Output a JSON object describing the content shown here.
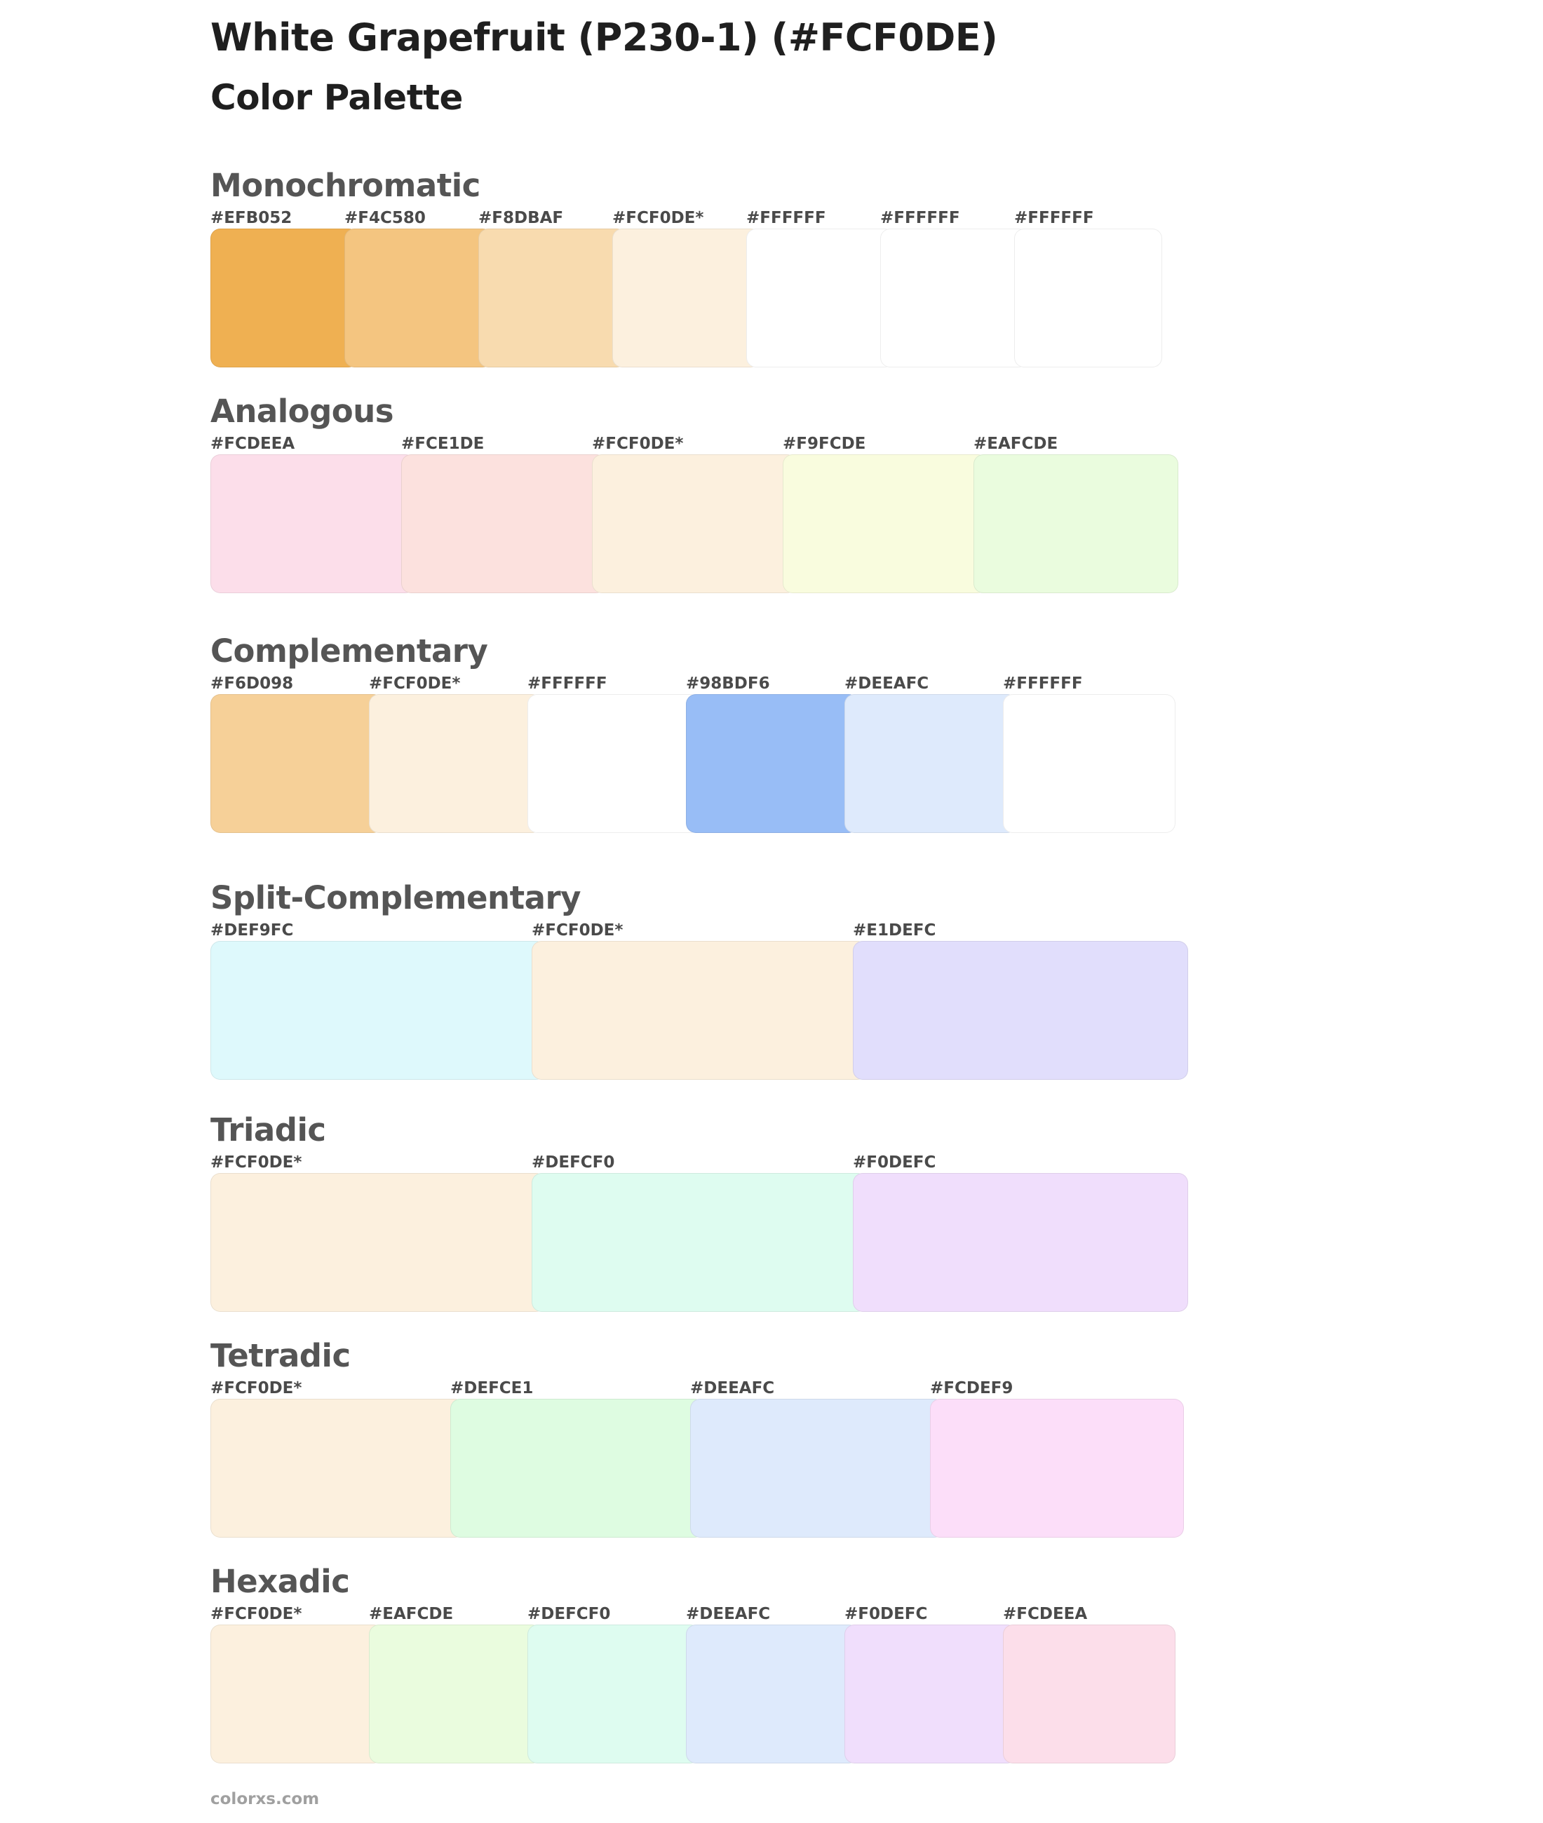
{
  "title": "White Grapefruit (P230-1) (#FCF0DE)",
  "subtitle": "Color Palette",
  "footer": "colorxs.com",
  "sections": [
    {
      "name": "Monochromatic",
      "swatches": [
        {
          "label": "#EFB052",
          "color": "#EFB052"
        },
        {
          "label": "#F4C580",
          "color": "#F4C580"
        },
        {
          "label": "#F8DBAF",
          "color": "#F8DBAF"
        },
        {
          "label": "#FCF0DE*",
          "color": "#FCF0DE"
        },
        {
          "label": "#FFFFFF",
          "color": "#FFFFFF"
        },
        {
          "label": "#FFFFFF",
          "color": "#FFFFFF"
        },
        {
          "label": "#FFFFFF",
          "color": "#FFFFFF"
        }
      ]
    },
    {
      "name": "Analogous",
      "swatches": [
        {
          "label": "#FCDEEA",
          "color": "#FCDEEA"
        },
        {
          "label": "#FCE1DE",
          "color": "#FCE1DE"
        },
        {
          "label": "#FCF0DE*",
          "color": "#FCF0DE"
        },
        {
          "label": "#F9FCDE",
          "color": "#F9FCDE"
        },
        {
          "label": "#EAFCDE",
          "color": "#EAFCDE"
        }
      ]
    },
    {
      "name": "Complementary",
      "swatches": [
        {
          "label": "#F6D098",
          "color": "#F6D098"
        },
        {
          "label": "#FCF0DE*",
          "color": "#FCF0DE"
        },
        {
          "label": "#FFFFFF",
          "color": "#FFFFFF"
        },
        {
          "label": "#98BDF6",
          "color": "#98BDF6"
        },
        {
          "label": "#DEEAFC",
          "color": "#DEEAFC"
        },
        {
          "label": "#FFFFFF",
          "color": "#FFFFFF"
        }
      ]
    },
    {
      "name": "Split-Complementary",
      "swatches": [
        {
          "label": "#DEF9FC",
          "color": "#DEF9FC"
        },
        {
          "label": "#FCF0DE*",
          "color": "#FCF0DE"
        },
        {
          "label": "#E1DEFC",
          "color": "#E1DEFC"
        }
      ]
    },
    {
      "name": "Triadic",
      "swatches": [
        {
          "label": "#FCF0DE*",
          "color": "#FCF0DE"
        },
        {
          "label": "#DEFCF0",
          "color": "#DEFCF0"
        },
        {
          "label": "#F0DEFC",
          "color": "#F0DEFC"
        }
      ]
    },
    {
      "name": "Tetradic",
      "swatches": [
        {
          "label": "#FCF0DE*",
          "color": "#FCF0DE"
        },
        {
          "label": "#DEFCE1",
          "color": "#DEFCE1"
        },
        {
          "label": "#DEEAFC",
          "color": "#DEEAFC"
        },
        {
          "label": "#FCDEF9",
          "color": "#FCDEF9"
        }
      ]
    },
    {
      "name": "Hexadic",
      "swatches": [
        {
          "label": "#FCF0DE*",
          "color": "#FCF0DE"
        },
        {
          "label": "#EAFCDE",
          "color": "#EAFCDE"
        },
        {
          "label": "#DEFCF0",
          "color": "#DEFCF0"
        },
        {
          "label": "#DEEAFC",
          "color": "#DEEAFC"
        },
        {
          "label": "#F0DEFC",
          "color": "#F0DEFC"
        },
        {
          "label": "#FCDEEA",
          "color": "#FCDEEA"
        }
      ]
    }
  ]
}
